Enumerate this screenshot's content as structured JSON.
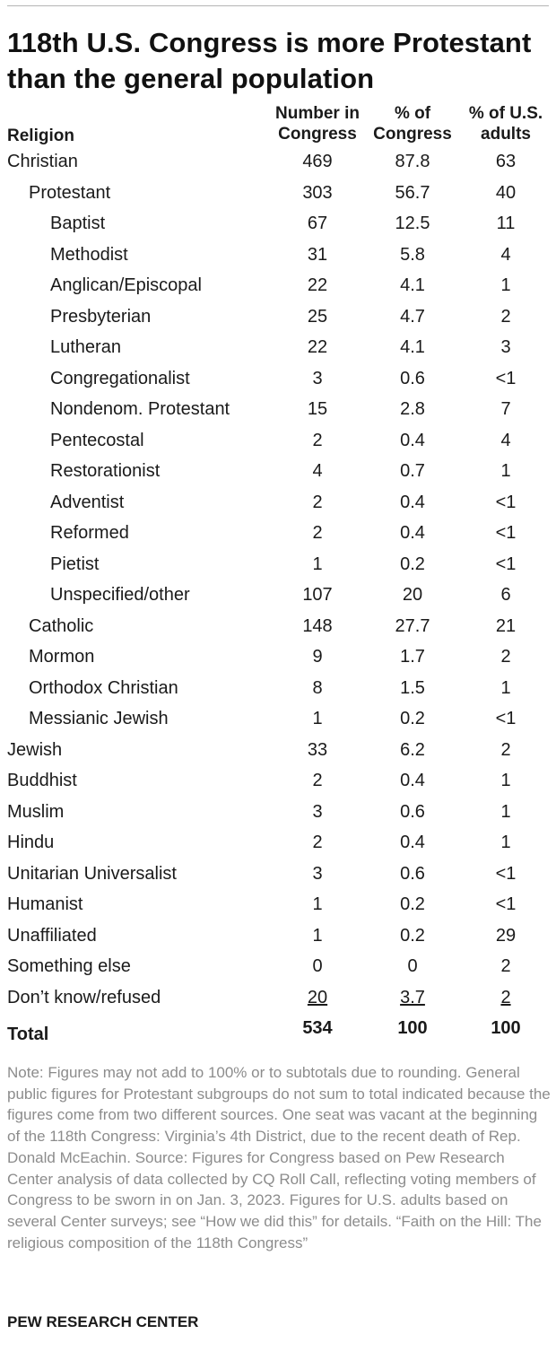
{
  "chart_data": {
    "type": "table",
    "title": "118th U.S. Congress is more Protestant than the general population",
    "columns": [
      "Religion",
      "Number in\nCongress",
      "% of\nCongress",
      "% of U.S.\nadults"
    ],
    "rows": [
      {
        "label": "Christian",
        "level": 0,
        "values": [
          "469",
          "87.8",
          "63"
        ]
      },
      {
        "label": "Protestant",
        "level": 1,
        "values": [
          "303",
          "56.7",
          "40"
        ]
      },
      {
        "label": "Baptist",
        "level": 2,
        "values": [
          "67",
          "12.5",
          "11"
        ]
      },
      {
        "label": "Methodist",
        "level": 2,
        "values": [
          "31",
          "5.8",
          "4"
        ]
      },
      {
        "label": "Anglican/Episcopal",
        "level": 2,
        "values": [
          "22",
          "4.1",
          "1"
        ]
      },
      {
        "label": "Presbyterian",
        "level": 2,
        "values": [
          "25",
          "4.7",
          "2"
        ]
      },
      {
        "label": "Lutheran",
        "level": 2,
        "values": [
          "22",
          "4.1",
          "3"
        ]
      },
      {
        "label": "Congregationalist",
        "level": 2,
        "values": [
          "3",
          "0.6",
          "<1"
        ]
      },
      {
        "label": "Nondenom. Protestant",
        "level": 2,
        "values": [
          "15",
          "2.8",
          "7"
        ]
      },
      {
        "label": "Pentecostal",
        "level": 2,
        "values": [
          "2",
          "0.4",
          "4"
        ]
      },
      {
        "label": "Restorationist",
        "level": 2,
        "values": [
          "4",
          "0.7",
          "1"
        ]
      },
      {
        "label": "Adventist",
        "level": 2,
        "values": [
          "2",
          "0.4",
          "<1"
        ]
      },
      {
        "label": "Reformed",
        "level": 2,
        "values": [
          "2",
          "0.4",
          "<1"
        ]
      },
      {
        "label": "Pietist",
        "level": 2,
        "values": [
          "1",
          "0.2",
          "<1"
        ]
      },
      {
        "label": "Unspecified/other",
        "level": 2,
        "values": [
          "107",
          "20",
          "6"
        ]
      },
      {
        "label": "Catholic",
        "level": 1,
        "values": [
          "148",
          "27.7",
          "21"
        ]
      },
      {
        "label": "Mormon",
        "level": 1,
        "values": [
          "9",
          "1.7",
          "2"
        ]
      },
      {
        "label": "Orthodox Christian",
        "level": 1,
        "values": [
          "8",
          "1.5",
          "1"
        ]
      },
      {
        "label": "Messianic Jewish",
        "level": 1,
        "values": [
          "1",
          "0.2",
          "<1"
        ]
      },
      {
        "label": "Jewish",
        "level": 0,
        "values": [
          "33",
          "6.2",
          "2"
        ]
      },
      {
        "label": "Buddhist",
        "level": 0,
        "values": [
          "2",
          "0.4",
          "1"
        ]
      },
      {
        "label": "Muslim",
        "level": 0,
        "values": [
          "3",
          "0.6",
          "1"
        ]
      },
      {
        "label": "Hindu",
        "level": 0,
        "values": [
          "2",
          "0.4",
          "1"
        ]
      },
      {
        "label": "Unitarian Universalist",
        "level": 0,
        "values": [
          "3",
          "0.6",
          "<1"
        ]
      },
      {
        "label": "Humanist",
        "level": 0,
        "values": [
          "1",
          "0.2",
          "<1"
        ]
      },
      {
        "label": "Unaffiliated",
        "level": 0,
        "values": [
          "1",
          "0.2",
          "29"
        ]
      },
      {
        "label": "Something else",
        "level": 0,
        "values": [
          "0",
          "0",
          "2"
        ]
      },
      {
        "label": "Don’t know/refused",
        "level": 0,
        "values": [
          "20",
          "3.7",
          "2"
        ],
        "underline": true
      }
    ],
    "total": {
      "label": "Total",
      "values": [
        "534",
        "100",
        "100"
      ]
    }
  },
  "note": "Note: Figures may not add to 100% or to subtotals due to rounding. General public figures for Protestant subgroups do not sum to total indicated because the figures come from two different sources. One seat was vacant at the beginning of the 118th Congress: Virginia’s 4th District, due to the recent death of Rep. Donald McEachin.",
  "source": "Source: Figures for Congress based on Pew Research Center analysis of data collected by CQ Roll Call, reflecting voting members of Congress to be sworn in on Jan. 3, 2023. Figures for U.S. adults based on several Center surveys; see “How we did this” for details.",
  "report": "“Faith on the Hill: The religious composition of the 118th Congress”",
  "organization": "PEW RESEARCH CENTER"
}
